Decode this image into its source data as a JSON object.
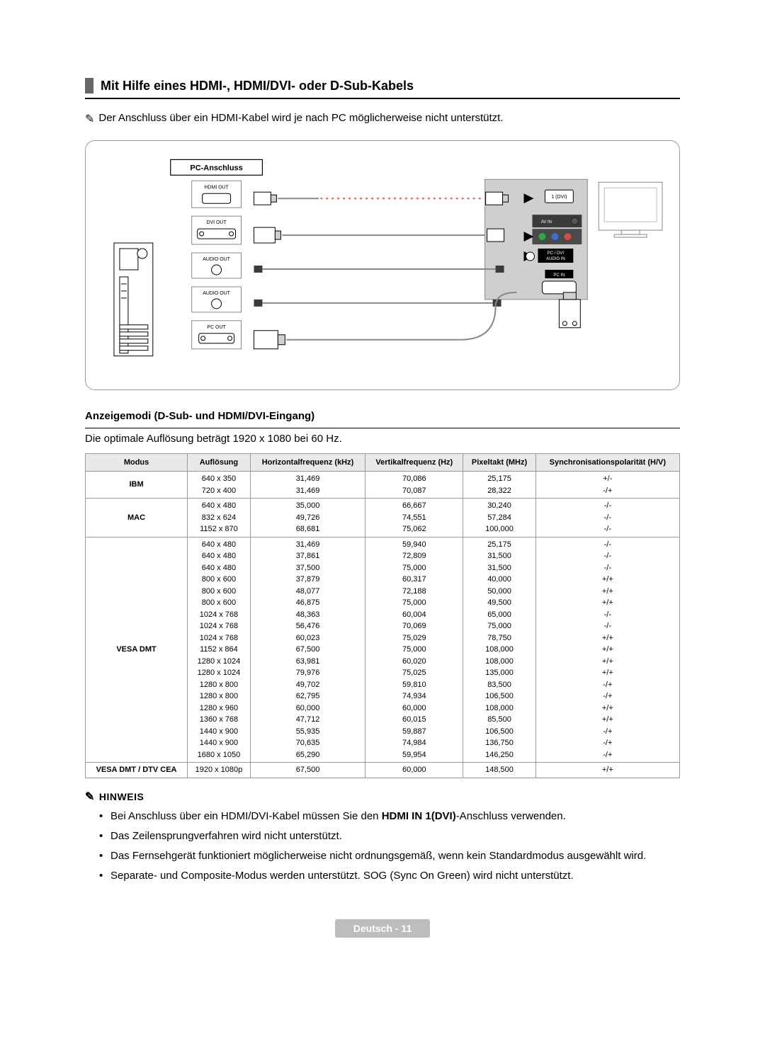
{
  "section": {
    "title": "Mit Hilfe eines HDMI-, HDMI/DVI- oder D-Sub-Kabels",
    "note": "Der Anschluss über ein HDMI-Kabel wird je nach PC möglicherweise nicht unterstützt."
  },
  "diagram": {
    "pc_anschluss_label": "PC-Anschluss",
    "ports": {
      "hdmi_out": "HDMI OUT",
      "dvi_out": "DVI OUT",
      "audio_out_1": "AUDIO OUT",
      "audio_out_2": "AUDIO OUT",
      "pc_out": "PC OUT",
      "tv_dvi": "1 (DVI)",
      "tv_avin": "AV IN",
      "tv_audioin": "PC / DVI\nAUDIO IN",
      "tv_pcin": "PC IN"
    },
    "colors": {
      "box_border": "#999999",
      "label_bg": "#ffffff",
      "panel_fill": "#cfcfcf",
      "dark": "#3a3a3a",
      "cable": "#888888",
      "red_dots": "#d85a5a"
    }
  },
  "display_modes": {
    "subheading": "Anzeigemodi (D-Sub- und HDMI/DVI-Eingang)",
    "caption": "Die optimale Auflösung beträgt 1920 x 1080 bei 60 Hz.",
    "columns": [
      "Modus",
      "Auflösung",
      "Horizontalfrequenz (kHz)",
      "Vertikalfrequenz (Hz)",
      "Pixeltakt (MHz)",
      "Synchronisationspolarität (H/V)"
    ],
    "groups": [
      {
        "mode": "IBM",
        "rows": [
          [
            "640 x 350",
            "31,469",
            "70,086",
            "25,175",
            "+/-"
          ],
          [
            "720 x 400",
            "31,469",
            "70,087",
            "28,322",
            "-/+"
          ]
        ]
      },
      {
        "mode": "MAC",
        "rows": [
          [
            "640 x 480",
            "35,000",
            "66,667",
            "30,240",
            "-/-"
          ],
          [
            "832 x 624",
            "49,726",
            "74,551",
            "57,284",
            "-/-"
          ],
          [
            "1152 x 870",
            "68,681",
            "75,062",
            "100,000",
            "-/-"
          ]
        ]
      },
      {
        "mode": "VESA DMT",
        "rows": [
          [
            "640 x 480",
            "31,469",
            "59,940",
            "25,175",
            "-/-"
          ],
          [
            "640 x 480",
            "37,861",
            "72,809",
            "31,500",
            "-/-"
          ],
          [
            "640 x 480",
            "37,500",
            "75,000",
            "31,500",
            "-/-"
          ],
          [
            "800 x 600",
            "37,879",
            "60,317",
            "40,000",
            "+/+"
          ],
          [
            "800 x 600",
            "48,077",
            "72,188",
            "50,000",
            "+/+"
          ],
          [
            "800 x 600",
            "46,875",
            "75,000",
            "49,500",
            "+/+"
          ],
          [
            "1024 x 768",
            "48,363",
            "60,004",
            "65,000",
            "-/-"
          ],
          [
            "1024 x 768",
            "56,476",
            "70,069",
            "75,000",
            "-/-"
          ],
          [
            "1024 x 768",
            "60,023",
            "75,029",
            "78,750",
            "+/+"
          ],
          [
            "1152 x 864",
            "67,500",
            "75,000",
            "108,000",
            "+/+"
          ],
          [
            "1280 x 1024",
            "63,981",
            "60,020",
            "108,000",
            "+/+"
          ],
          [
            "1280 x 1024",
            "79,976",
            "75,025",
            "135,000",
            "+/+"
          ],
          [
            "1280 x 800",
            "49,702",
            "59,810",
            "83,500",
            "-/+"
          ],
          [
            "1280 x 800",
            "62,795",
            "74,934",
            "106,500",
            "-/+"
          ],
          [
            "1280 x 960",
            "60,000",
            "60,000",
            "108,000",
            "+/+"
          ],
          [
            "1360 x 768",
            "47,712",
            "60,015",
            "85,500",
            "+/+"
          ],
          [
            "1440 x 900",
            "55,935",
            "59,887",
            "106,500",
            "-/+"
          ],
          [
            "1440 x 900",
            "70,635",
            "74,984",
            "136,750",
            "-/+"
          ],
          [
            "1680 x 1050",
            "65,290",
            "59,954",
            "146,250",
            "-/+"
          ]
        ]
      },
      {
        "mode": "VESA DMT / DTV CEA",
        "rows": [
          [
            "1920 x 1080p",
            "67,500",
            "60,000",
            "148,500",
            "+/+"
          ]
        ]
      }
    ]
  },
  "hinweis": {
    "label": "HINWEIS",
    "items": [
      {
        "pre": "Bei Anschluss über ein HDMI/DVI-Kabel müssen Sie den ",
        "bold": "HDMI IN 1(DVI)",
        "post": "-Anschluss verwenden."
      },
      {
        "pre": "Das Zeilensprungverfahren wird nicht unterstützt.",
        "bold": "",
        "post": ""
      },
      {
        "pre": "Das Fernsehgerät funktioniert möglicherweise nicht ordnungsgemäß, wenn kein Standardmodus ausgewählt wird.",
        "bold": "",
        "post": ""
      },
      {
        "pre": "Separate- und Composite-Modus werden unterstützt. SOG (Sync On Green) wird nicht unterstützt.",
        "bold": "",
        "post": ""
      }
    ]
  },
  "footer": {
    "text": "Deutsch - 11"
  }
}
